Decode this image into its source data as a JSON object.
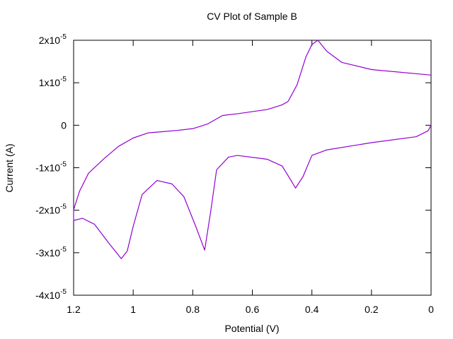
{
  "chart_data": {
    "type": "line",
    "title": "CV Plot of Sample B",
    "xlabel": "Potential (V)",
    "ylabel": "Current (A)",
    "xlim": [
      1.2,
      0
    ],
    "xticks": [
      1.2,
      1,
      0.8,
      0.6,
      0.4,
      0.2,
      0
    ],
    "ylim": [
      -4e-05,
      2e-05
    ],
    "yticks": [
      {
        "value": 2e-05,
        "label": "2x10",
        "sup": "-5"
      },
      {
        "value": 1e-05,
        "label": "1x10",
        "sup": "-5"
      },
      0,
      {
        "value": -1e-05,
        "label": "-1x10",
        "sup": "-5"
      },
      {
        "value": -2e-05,
        "label": "-2x10",
        "sup": "-5"
      },
      {
        "value": -3e-05,
        "label": "-3x10",
        "sup": "-5"
      },
      {
        "value": -4e-05,
        "label": "-4x10",
        "sup": "-5"
      }
    ],
    "series": [
      {
        "color": "#9400d3",
        "x": [
          0,
          0.2,
          0.3,
          0.35,
          0.38,
          0.4,
          0.42,
          0.45,
          0.48,
          0.5,
          0.55,
          0.6,
          0.65,
          0.7,
          0.75,
          0.8,
          0.85,
          0.9,
          0.95,
          1.0,
          1.05,
          1.1,
          1.15,
          1.18,
          1.2,
          1.2,
          1.17,
          1.13,
          1.08,
          1.04,
          1.02,
          1.0,
          0.97,
          0.92,
          0.87,
          0.83,
          0.79,
          0.76,
          0.74,
          0.72,
          0.68,
          0.65,
          0.55,
          0.5,
          0.47,
          0.455,
          0.43,
          0.4,
          0.35,
          0.2,
          0.05,
          0.01,
          0
        ],
        "values": [
          1.18e-05,
          1.31e-05,
          1.48e-05,
          1.74e-05,
          2e-05,
          1.9e-05,
          1.61e-05,
          9.5e-06,
          5.6e-06,
          4.8e-06,
          3.7e-06,
          3.2e-06,
          2.7e-06,
          2.3e-06,
          3e-07,
          -8e-07,
          -1.2e-06,
          -1.5e-06,
          -1.8e-06,
          -3e-06,
          -5e-06,
          -8e-06,
          -1.13e-05,
          -1.55e-05,
          -1.99e-05,
          -2.24e-05,
          -2.19e-05,
          -2.33e-05,
          -2.79e-05,
          -3.14e-05,
          -2.96e-05,
          -2.38e-05,
          -1.63e-05,
          -1.3e-05,
          -1.38e-05,
          -1.68e-05,
          -2.38e-05,
          -2.94e-05,
          -2.04e-05,
          -1.05e-05,
          -7.5e-06,
          -7.1e-06,
          -8e-06,
          -9.6e-06,
          -1.3e-05,
          -1.48e-05,
          -1.21e-05,
          -7.1e-06,
          -5.8e-06,
          -4.1e-06,
          -2.7e-06,
          -1.3e-06,
          0
        ]
      }
    ]
  }
}
